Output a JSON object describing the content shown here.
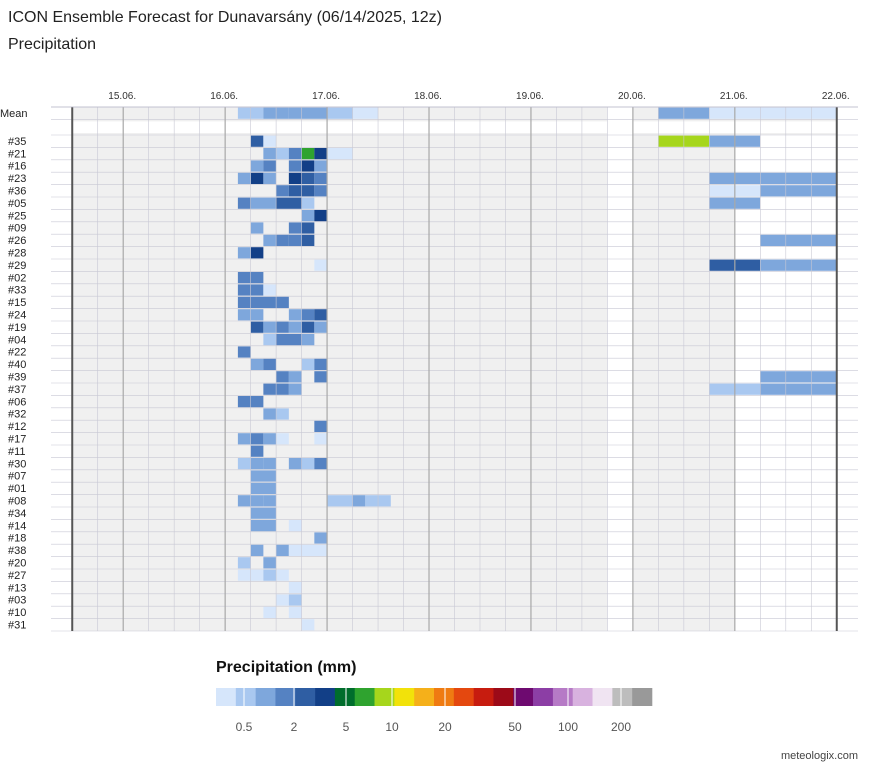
{
  "title": "ICON Ensemble Forecast for Dunavarsány (06/14/2025, 12z)",
  "subtitle": "Precipitation",
  "credit": "meteologix.com",
  "chart_data": {
    "type": "heatmap",
    "x_days": [
      "15.06.",
      "16.06.",
      "17.06.",
      "18.06.",
      "19.06.",
      "20.06.",
      "21.06.",
      "22.06."
    ],
    "x_start": "2025-06-14T12:00",
    "x_end": "2025-06-21T24:00",
    "rows": [
      "Mean",
      "#35",
      "#21",
      "#16",
      "#23",
      "#36",
      "#05",
      "#25",
      "#09",
      "#26",
      "#28",
      "#29",
      "#02",
      "#33",
      "#15",
      "#24",
      "#19",
      "#04",
      "#22",
      "#40",
      "#39",
      "#37",
      "#06",
      "#32",
      "#12",
      "#17",
      "#11",
      "#30",
      "#07",
      "#01",
      "#08",
      "#34",
      "#14",
      "#18",
      "#38",
      "#20",
      "#27",
      "#13",
      "#03",
      "#10",
      "#31"
    ],
    "no_data_periods": [
      {
        "start": "2025-06-19T18:00",
        "end": "2025-06-20T00:00"
      },
      {
        "start": "2025-06-21T00:00",
        "end": "2025-06-21T24:00",
        "rows": "members"
      }
    ],
    "legend": {
      "title": "Precipitation (mm)",
      "ticks": [
        "0.5",
        "2",
        "5",
        "10",
        "20",
        "50",
        "100",
        "200"
      ],
      "colors": [
        "#d6e6fb",
        "#a9c8f0",
        "#7ea7dc",
        "#5582c2",
        "#2f5ea3",
        "#123f87",
        "#006d2c",
        "#2fa32f",
        "#a6d61c",
        "#f2e20a",
        "#f5b01a",
        "#ef7b12",
        "#e4480f",
        "#c71c0f",
        "#9c0a18",
        "#6e0a70",
        "#8c3ea5",
        "#b67ac6",
        "#d8b2df",
        "#f0e4f2",
        "#bdbdbd",
        "#999999"
      ]
    },
    "cells": [
      {
        "row": "Mean",
        "start": "2025-06-16T03:00",
        "end": "2025-06-16T09:00",
        "value": 0.6
      },
      {
        "row": "Mean",
        "start": "2025-06-16T09:00",
        "end": "2025-06-16T15:00",
        "value": 1.2
      },
      {
        "row": "Mean",
        "start": "2025-06-16T15:00",
        "end": "2025-06-17T00:00",
        "value": 1.0
      },
      {
        "row": "Mean",
        "start": "2025-06-17T00:00",
        "end": "2025-06-17T06:00",
        "value": 0.8
      },
      {
        "row": "Mean",
        "start": "2025-06-17T06:00",
        "end": "2025-06-17T12:00",
        "value": 0.3
      },
      {
        "row": "Mean",
        "start": "2025-06-20T06:00",
        "end": "2025-06-20T18:00",
        "value": 1.2
      },
      {
        "row": "Mean",
        "start": "2025-06-20T18:00",
        "end": "2025-06-21T12:00",
        "value": 0.4
      },
      {
        "row": "Mean",
        "start": "2025-06-21T12:00",
        "end": "2025-06-21T24:00",
        "value": 0.3
      },
      {
        "row": "#35",
        "start": "2025-06-20T06:00",
        "end": "2025-06-20T18:00",
        "value": 15
      },
      {
        "row": "#35",
        "start": "2025-06-20T18:00",
        "end": "2025-06-21T06:00",
        "value": 1.5
      },
      {
        "row": "#35",
        "start": "2025-06-16T06:00",
        "end": "2025-06-16T09:00",
        "value": 4
      },
      {
        "row": "#35",
        "start": "2025-06-16T09:00",
        "end": "2025-06-16T12:00",
        "value": 0.4
      },
      {
        "row": "#21",
        "start": "2025-06-16T09:00",
        "end": "2025-06-16T12:00",
        "value": 1.5
      },
      {
        "row": "#21",
        "start": "2025-06-16T12:00",
        "end": "2025-06-16T15:00",
        "value": 0.5
      },
      {
        "row": "#21",
        "start": "2025-06-16T15:00",
        "end": "2025-06-16T18:00",
        "value": 3
      },
      {
        "row": "#21",
        "start": "2025-06-16T18:00",
        "end": "2025-06-16T21:00",
        "value": 10
      },
      {
        "row": "#21",
        "start": "2025-06-16T21:00",
        "end": "2025-06-17T00:00",
        "value": 5
      },
      {
        "row": "#21",
        "start": "2025-06-17T00:00",
        "end": "2025-06-17T06:00",
        "value": 0.3
      },
      {
        "row": "#16",
        "start": "2025-06-16T06:00",
        "end": "2025-06-16T09:00",
        "value": 1.5
      },
      {
        "row": "#16",
        "start": "2025-06-16T09:00",
        "end": "2025-06-16T12:00",
        "value": 2
      },
      {
        "row": "#16",
        "start": "2025-06-16T15:00",
        "end": "2025-06-16T18:00",
        "value": 2
      },
      {
        "row": "#16",
        "start": "2025-06-16T18:00",
        "end": "2025-06-16T21:00",
        "value": 6
      },
      {
        "row": "#16",
        "start": "2025-06-16T21:00",
        "end": "2025-06-17T00:00",
        "value": 1.5
      },
      {
        "row": "#23",
        "start": "2025-06-16T03:00",
        "end": "2025-06-16T06:00",
        "value": 1
      },
      {
        "row": "#23",
        "start": "2025-06-16T06:00",
        "end": "2025-06-16T09:00",
        "value": 5
      },
      {
        "row": "#23",
        "start": "2025-06-16T09:00",
        "end": "2025-06-16T12:00",
        "value": 1.5
      },
      {
        "row": "#23",
        "start": "2025-06-16T15:00",
        "end": "2025-06-16T18:00",
        "value": 5
      },
      {
        "row": "#23",
        "start": "2025-06-16T18:00",
        "end": "2025-06-16T21:00",
        "value": 4
      },
      {
        "row": "#23",
        "start": "2025-06-16T21:00",
        "end": "2025-06-17T00:00",
        "value": 2
      },
      {
        "row": "#23",
        "start": "2025-06-20T18:00",
        "end": "2025-06-21T24:00",
        "value": 1.2
      },
      {
        "row": "#36",
        "start": "2025-06-16T12:00",
        "end": "2025-06-16T15:00",
        "value": 3
      },
      {
        "row": "#36",
        "start": "2025-06-16T15:00",
        "end": "2025-06-16T18:00",
        "value": 3.5
      },
      {
        "row": "#36",
        "start": "2025-06-16T18:00",
        "end": "2025-06-16T21:00",
        "value": 4
      },
      {
        "row": "#36",
        "start": "2025-06-16T21:00",
        "end": "2025-06-17T00:00",
        "value": 2
      },
      {
        "row": "#36",
        "start": "2025-06-20T18:00",
        "end": "2025-06-21T06:00",
        "value": 0.4
      },
      {
        "row": "#36",
        "start": "2025-06-21T06:00",
        "end": "2025-06-21T24:00",
        "value": 1.5
      },
      {
        "row": "#05",
        "start": "2025-06-16T03:00",
        "end": "2025-06-16T06:00",
        "value": 3
      },
      {
        "row": "#05",
        "start": "2025-06-16T06:00",
        "end": "2025-06-16T12:00",
        "value": 1.5
      },
      {
        "row": "#05",
        "start": "2025-06-16T12:00",
        "end": "2025-06-16T18:00",
        "value": 4
      },
      {
        "row": "#05",
        "start": "2025-06-16T18:00",
        "end": "2025-06-16T21:00",
        "value": 0.5
      },
      {
        "row": "#05",
        "start": "2025-06-20T18:00",
        "end": "2025-06-21T06:00",
        "value": 1.2
      },
      {
        "row": "#25",
        "start": "2025-06-16T18:00",
        "end": "2025-06-16T21:00",
        "value": 1.5
      },
      {
        "row": "#25",
        "start": "2025-06-16T21:00",
        "end": "2025-06-17T00:00",
        "value": 5
      },
      {
        "row": "#09",
        "start": "2025-06-16T06:00",
        "end": "2025-06-16T09:00",
        "value": 1.5
      },
      {
        "row": "#09",
        "start": "2025-06-16T15:00",
        "end": "2025-06-16T18:00",
        "value": 3
      },
      {
        "row": "#09",
        "start": "2025-06-16T18:00",
        "end": "2025-06-16T21:00",
        "value": 4
      },
      {
        "row": "#26",
        "start": "2025-06-16T09:00",
        "end": "2025-06-16T12:00",
        "value": 1.5
      },
      {
        "row": "#26",
        "start": "2025-06-16T12:00",
        "end": "2025-06-16T15:00",
        "value": 2
      },
      {
        "row": "#26",
        "start": "2025-06-16T15:00",
        "end": "2025-06-16T18:00",
        "value": 3
      },
      {
        "row": "#26",
        "start": "2025-06-16T18:00",
        "end": "2025-06-16T21:00",
        "value": 4
      },
      {
        "row": "#26",
        "start": "2025-06-21T06:00",
        "end": "2025-06-21T24:00",
        "value": 1.2
      },
      {
        "row": "#28",
        "start": "2025-06-16T03:00",
        "end": "2025-06-16T06:00",
        "value": 1
      },
      {
        "row": "#28",
        "start": "2025-06-16T06:00",
        "end": "2025-06-16T09:00",
        "value": 5
      },
      {
        "row": "#29",
        "start": "2025-06-16T21:00",
        "end": "2025-06-17T00:00",
        "value": 0.3
      },
      {
        "row": "#29",
        "start": "2025-06-20T18:00",
        "end": "2025-06-21T06:00",
        "value": 4
      },
      {
        "row": "#29",
        "start": "2025-06-21T06:00",
        "end": "2025-06-21T24:00",
        "value": 1.5
      },
      {
        "row": "#02",
        "start": "2025-06-16T03:00",
        "end": "2025-06-16T06:00",
        "value": 2
      },
      {
        "row": "#02",
        "start": "2025-06-16T06:00",
        "end": "2025-06-16T09:00",
        "value": 2.5
      },
      {
        "row": "#33",
        "start": "2025-06-16T03:00",
        "end": "2025-06-16T06:00",
        "value": 2.5
      },
      {
        "row": "#33",
        "start": "2025-06-16T06:00",
        "end": "2025-06-16T09:00",
        "value": 2
      },
      {
        "row": "#33",
        "start": "2025-06-16T09:00",
        "end": "2025-06-16T12:00",
        "value": 0.3
      },
      {
        "row": "#15",
        "start": "2025-06-16T03:00",
        "end": "2025-06-16T06:00",
        "value": 2.5
      },
      {
        "row": "#15",
        "start": "2025-06-16T06:00",
        "end": "2025-06-16T15:00",
        "value": 3
      },
      {
        "row": "#24",
        "start": "2025-06-16T03:00",
        "end": "2025-06-16T06:00",
        "value": 1
      },
      {
        "row": "#24",
        "start": "2025-06-16T06:00",
        "end": "2025-06-16T09:00",
        "value": 1.5
      },
      {
        "row": "#24",
        "start": "2025-06-16T15:00",
        "end": "2025-06-16T18:00",
        "value": 1
      },
      {
        "row": "#24",
        "start": "2025-06-16T18:00",
        "end": "2025-06-16T21:00",
        "value": 3
      },
      {
        "row": "#24",
        "start": "2025-06-16T21:00",
        "end": "2025-06-17T00:00",
        "value": 4
      },
      {
        "row": "#19",
        "start": "2025-06-16T06:00",
        "end": "2025-06-16T09:00",
        "value": 4
      },
      {
        "row": "#19",
        "start": "2025-06-16T09:00",
        "end": "2025-06-16T12:00",
        "value": 1.5
      },
      {
        "row": "#19",
        "start": "2025-06-16T12:00",
        "end": "2025-06-16T15:00",
        "value": 3
      },
      {
        "row": "#19",
        "start": "2025-06-16T15:00",
        "end": "2025-06-16T18:00",
        "value": 1
      },
      {
        "row": "#19",
        "start": "2025-06-16T18:00",
        "end": "2025-06-16T21:00",
        "value": 4
      },
      {
        "row": "#19",
        "start": "2025-06-16T21:00",
        "end": "2025-06-17T00:00",
        "value": 1.5
      },
      {
        "row": "#04",
        "start": "2025-06-16T09:00",
        "end": "2025-06-16T12:00",
        "value": 0.5
      },
      {
        "row": "#04",
        "start": "2025-06-16T12:00",
        "end": "2025-06-16T18:00",
        "value": 3
      },
      {
        "row": "#04",
        "start": "2025-06-16T18:00",
        "end": "2025-06-16T21:00",
        "value": 1.5
      },
      {
        "row": "#22",
        "start": "2025-06-16T03:00",
        "end": "2025-06-16T06:00",
        "value": 3
      },
      {
        "row": "#40",
        "start": "2025-06-16T06:00",
        "end": "2025-06-16T09:00",
        "value": 1.5
      },
      {
        "row": "#40",
        "start": "2025-06-16T09:00",
        "end": "2025-06-16T12:00",
        "value": 3
      },
      {
        "row": "#40",
        "start": "2025-06-16T18:00",
        "end": "2025-06-16T21:00",
        "value": 0.5
      },
      {
        "row": "#40",
        "start": "2025-06-16T21:00",
        "end": "2025-06-17T00:00",
        "value": 2
      },
      {
        "row": "#39",
        "start": "2025-06-16T12:00",
        "end": "2025-06-16T15:00",
        "value": 3
      },
      {
        "row": "#39",
        "start": "2025-06-16T15:00",
        "end": "2025-06-16T18:00",
        "value": 1
      },
      {
        "row": "#39",
        "start": "2025-06-16T21:00",
        "end": "2025-06-17T00:00",
        "value": 3
      },
      {
        "row": "#39",
        "start": "2025-06-21T06:00",
        "end": "2025-06-21T24:00",
        "value": 1.5
      },
      {
        "row": "#37",
        "start": "2025-06-16T09:00",
        "end": "2025-06-16T15:00",
        "value": 2
      },
      {
        "row": "#37",
        "start": "2025-06-16T15:00",
        "end": "2025-06-16T18:00",
        "value": 1.5
      },
      {
        "row": "#37",
        "start": "2025-06-20T18:00",
        "end": "2025-06-21T06:00",
        "value": 0.8
      },
      {
        "row": "#37",
        "start": "2025-06-21T06:00",
        "end": "2025-06-21T24:00",
        "value": 1.2
      },
      {
        "row": "#06",
        "start": "2025-06-16T03:00",
        "end": "2025-06-16T09:00",
        "value": 3
      },
      {
        "row": "#32",
        "start": "2025-06-16T09:00",
        "end": "2025-06-16T12:00",
        "value": 1.5
      },
      {
        "row": "#32",
        "start": "2025-06-16T12:00",
        "end": "2025-06-16T15:00",
        "value": 0.6
      },
      {
        "row": "#12",
        "start": "2025-06-16T21:00",
        "end": "2025-06-17T00:00",
        "value": 2
      },
      {
        "row": "#17",
        "start": "2025-06-16T03:00",
        "end": "2025-06-16T06:00",
        "value": 1
      },
      {
        "row": "#17",
        "start": "2025-06-16T06:00",
        "end": "2025-06-16T09:00",
        "value": 2
      },
      {
        "row": "#17",
        "start": "2025-06-16T09:00",
        "end": "2025-06-16T12:00",
        "value": 1.5
      },
      {
        "row": "#17",
        "start": "2025-06-16T12:00",
        "end": "2025-06-16T15:00",
        "value": 0.3
      },
      {
        "row": "#17",
        "start": "2025-06-16T21:00",
        "end": "2025-06-17T00:00",
        "value": 0.2
      },
      {
        "row": "#11",
        "start": "2025-06-16T06:00",
        "end": "2025-06-16T09:00",
        "value": 2
      },
      {
        "row": "#30",
        "start": "2025-06-16T03:00",
        "end": "2025-06-16T06:00",
        "value": 0.6
      },
      {
        "row": "#30",
        "start": "2025-06-16T06:00",
        "end": "2025-06-16T09:00",
        "value": 1
      },
      {
        "row": "#30",
        "start": "2025-06-16T09:00",
        "end": "2025-06-16T12:00",
        "value": 1.5
      },
      {
        "row": "#30",
        "start": "2025-06-16T15:00",
        "end": "2025-06-16T18:00",
        "value": 1
      },
      {
        "row": "#30",
        "start": "2025-06-16T18:00",
        "end": "2025-06-16T21:00",
        "value": 0.5
      },
      {
        "row": "#30",
        "start": "2025-06-16T21:00",
        "end": "2025-06-17T00:00",
        "value": 2
      },
      {
        "row": "#07",
        "start": "2025-06-16T06:00",
        "end": "2025-06-16T12:00",
        "value": 1.5
      },
      {
        "row": "#01",
        "start": "2025-06-16T06:00",
        "end": "2025-06-16T12:00",
        "value": 1.5
      },
      {
        "row": "#08",
        "start": "2025-06-16T03:00",
        "end": "2025-06-16T06:00",
        "value": 1.5
      },
      {
        "row": "#08",
        "start": "2025-06-16T06:00",
        "end": "2025-06-16T09:00",
        "value": 1
      },
      {
        "row": "#08",
        "start": "2025-06-16T09:00",
        "end": "2025-06-16T12:00",
        "value": 1.5
      },
      {
        "row": "#08",
        "start": "2025-06-17T00:00",
        "end": "2025-06-17T06:00",
        "value": 0.8
      },
      {
        "row": "#08",
        "start": "2025-06-17T06:00",
        "end": "2025-06-17T09:00",
        "value": 1.5
      },
      {
        "row": "#08",
        "start": "2025-06-17T09:00",
        "end": "2025-06-17T15:00",
        "value": 0.5
      },
      {
        "row": "#34",
        "start": "2025-06-16T06:00",
        "end": "2025-06-16T12:00",
        "value": 1.5
      },
      {
        "row": "#14",
        "start": "2025-06-16T06:00",
        "end": "2025-06-16T12:00",
        "value": 1.2
      },
      {
        "row": "#14",
        "start": "2025-06-16T15:00",
        "end": "2025-06-16T18:00",
        "value": 0.4
      },
      {
        "row": "#18",
        "start": "2025-06-16T21:00",
        "end": "2025-06-17T00:00",
        "value": 1.5
      },
      {
        "row": "#38",
        "start": "2025-06-16T06:00",
        "end": "2025-06-16T09:00",
        "value": 1.5
      },
      {
        "row": "#38",
        "start": "2025-06-16T12:00",
        "end": "2025-06-16T15:00",
        "value": 1
      },
      {
        "row": "#38",
        "start": "2025-06-16T15:00",
        "end": "2025-06-17T00:00",
        "value": 0.4
      },
      {
        "row": "#20",
        "start": "2025-06-16T03:00",
        "end": "2025-06-16T06:00",
        "value": 0.6
      },
      {
        "row": "#20",
        "start": "2025-06-16T09:00",
        "end": "2025-06-16T12:00",
        "value": 1.2
      },
      {
        "row": "#27",
        "start": "2025-06-16T03:00",
        "end": "2025-06-16T06:00",
        "value": 0.2
      },
      {
        "row": "#27",
        "start": "2025-06-16T06:00",
        "end": "2025-06-16T09:00",
        "value": 0.3
      },
      {
        "row": "#27",
        "start": "2025-06-16T09:00",
        "end": "2025-06-16T12:00",
        "value": 0.6
      },
      {
        "row": "#27",
        "start": "2025-06-16T12:00",
        "end": "2025-06-16T15:00",
        "value": 0.3
      },
      {
        "row": "#13",
        "start": "2025-06-16T15:00",
        "end": "2025-06-16T18:00",
        "value": 0.3
      },
      {
        "row": "#03",
        "start": "2025-06-16T12:00",
        "end": "2025-06-16T15:00",
        "value": 0.3
      },
      {
        "row": "#03",
        "start": "2025-06-16T15:00",
        "end": "2025-06-16T18:00",
        "value": 0.5
      },
      {
        "row": "#10",
        "start": "2025-06-16T09:00",
        "end": "2025-06-16T12:00",
        "value": 0.3
      },
      {
        "row": "#10",
        "start": "2025-06-16T15:00",
        "end": "2025-06-16T18:00",
        "value": 0.2
      },
      {
        "row": "#31",
        "start": "2025-06-16T18:00",
        "end": "2025-06-16T21:00",
        "value": 0.3
      }
    ]
  }
}
